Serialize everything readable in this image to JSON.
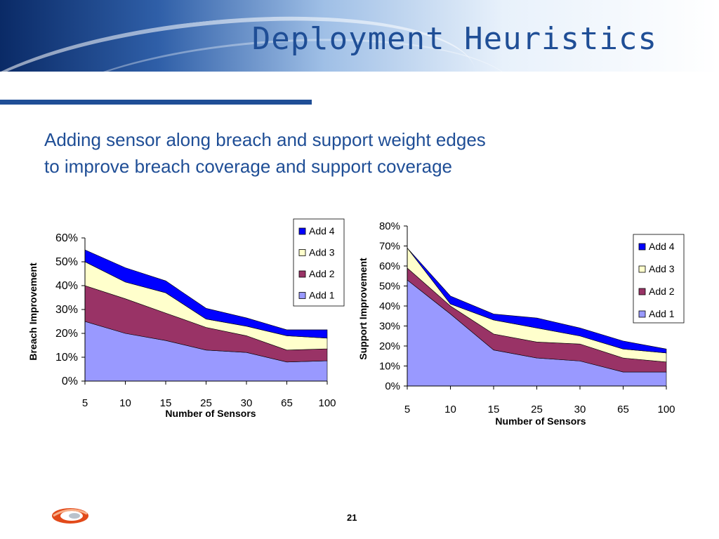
{
  "slide": {
    "title": "Deployment Heuristics",
    "subtitle_line1": "Adding sensor along breach and support weight edges",
    "subtitle_line2": "to improve breach coverage and support coverage",
    "page_number": "21"
  },
  "colors": {
    "add1": "#9999ff",
    "add2": "#993366",
    "add3": "#ffffcc",
    "add4": "#0000ff",
    "accent": "#1f4e96"
  },
  "chart_data": [
    {
      "type": "area",
      "stacked": true,
      "title": "",
      "xlabel": "Number of Sensors",
      "ylabel": "Breach Improvement",
      "categories": [
        "5",
        "10",
        "15",
        "25",
        "30",
        "65",
        "100"
      ],
      "ylim": [
        0,
        60
      ],
      "yticks": [
        "0%",
        "10%",
        "20%",
        "30%",
        "40%",
        "50%",
        "60%"
      ],
      "legend": "top-right",
      "series": [
        {
          "name": "Add 1",
          "values": [
            25,
            20,
            17,
            13,
            12,
            8,
            8.5
          ]
        },
        {
          "name": "Add 2",
          "values": [
            15,
            14.5,
            11.5,
            9.5,
            7,
            5,
            5
          ]
        },
        {
          "name": "Add 3",
          "values": [
            10,
            7,
            8.5,
            3.5,
            4,
            6,
            4.5
          ]
        },
        {
          "name": "Add 4",
          "values": [
            5,
            6,
            5,
            4.5,
            3.5,
            2.5,
            3.5
          ]
        }
      ]
    },
    {
      "type": "area",
      "stacked": true,
      "title": "",
      "xlabel": "Number of Sensors",
      "ylabel": "Support Improvement",
      "categories": [
        "5",
        "10",
        "15",
        "25",
        "30",
        "65",
        "100"
      ],
      "ylim": [
        0,
        80
      ],
      "yticks": [
        "0%",
        "10%",
        "20%",
        "30%",
        "40%",
        "50%",
        "60%",
        "70%",
        "80%"
      ],
      "legend": "right",
      "series": [
        {
          "name": "Add 1",
          "values": [
            53,
            36,
            18,
            14,
            12.5,
            7,
            7
          ]
        },
        {
          "name": "Add 2",
          "values": [
            6,
            4,
            8,
            8,
            8.5,
            7,
            5
          ]
        },
        {
          "name": "Add 3",
          "values": [
            10,
            1,
            7,
            7,
            4,
            4.5,
            4.5
          ]
        },
        {
          "name": "Add 4",
          "values": [
            0,
            4,
            3,
            5,
            4,
            4,
            2
          ]
        }
      ]
    }
  ]
}
